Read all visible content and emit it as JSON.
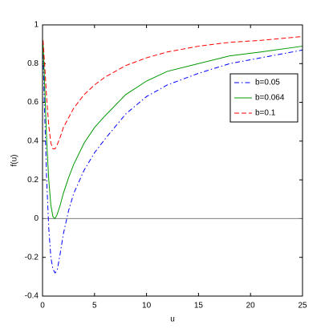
{
  "chart_data": {
    "type": "line",
    "xlabel": "u",
    "ylabel": "f(u)",
    "x": [
      0.05,
      0.2,
      0.4,
      0.6,
      0.8,
      1,
      1.2,
      1.4,
      1.7,
      2,
      2.5,
      3,
      4,
      5,
      6,
      8,
      10,
      12,
      15,
      18,
      21,
      25
    ],
    "series": [
      {
        "name": "b=0.05",
        "color": "#0000ff",
        "linestyle": "dashdot",
        "values": [
          0.85,
          0.55,
          0.2,
          -0.05,
          -0.2,
          -0.26,
          -0.28,
          -0.27,
          -0.18,
          -0.08,
          0.04,
          0.13,
          0.25,
          0.34,
          0.41,
          0.54,
          0.63,
          0.69,
          0.75,
          0.8,
          0.83,
          0.87
        ]
      },
      {
        "name": "b=0.064",
        "color": "#009900",
        "linestyle": "solid",
        "values": [
          0.9,
          0.7,
          0.4,
          0.2,
          0.07,
          0.01,
          0.0,
          0.02,
          0.07,
          0.13,
          0.21,
          0.28,
          0.39,
          0.47,
          0.53,
          0.64,
          0.71,
          0.76,
          0.8,
          0.84,
          0.86,
          0.89
        ]
      },
      {
        "name": "b=0.1",
        "color": "#ff0000",
        "linestyle": "dashed",
        "values": [
          0.92,
          0.8,
          0.62,
          0.48,
          0.39,
          0.36,
          0.36,
          0.38,
          0.42,
          0.47,
          0.52,
          0.57,
          0.64,
          0.69,
          0.73,
          0.79,
          0.83,
          0.86,
          0.89,
          0.91,
          0.92,
          0.94
        ]
      }
    ],
    "xlim": [
      0,
      25
    ],
    "xticks": [
      0,
      5,
      10,
      15,
      20,
      25
    ],
    "ylim": [
      -0.4,
      1
    ],
    "yticks": [
      -0.4,
      -0.2,
      0,
      0.2,
      0.4,
      0.6,
      0.8,
      1
    ],
    "hline": 0,
    "hline_color": "#808080",
    "legend": "upper right",
    "grid": false
  }
}
